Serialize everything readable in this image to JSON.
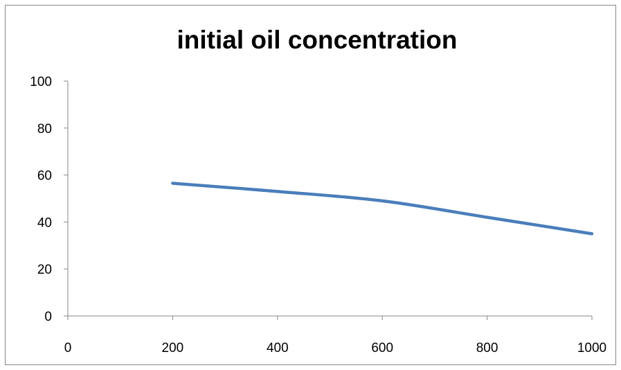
{
  "chart_data": {
    "type": "line",
    "title": "initial oil concentration",
    "xlabel": "",
    "ylabel": "",
    "xlim": [
      0,
      1000
    ],
    "ylim": [
      0,
      100
    ],
    "x_ticks": [
      0,
      200,
      400,
      600,
      800,
      1000
    ],
    "y_ticks": [
      0,
      20,
      40,
      60,
      80,
      100
    ],
    "grid": false,
    "legend": "none",
    "series": [
      {
        "color": "#4a7ebb",
        "x": [
          200,
          400,
          600,
          800,
          1000
        ],
        "y": [
          56.5,
          53.0,
          49.0,
          42.0,
          35.0
        ]
      }
    ]
  }
}
